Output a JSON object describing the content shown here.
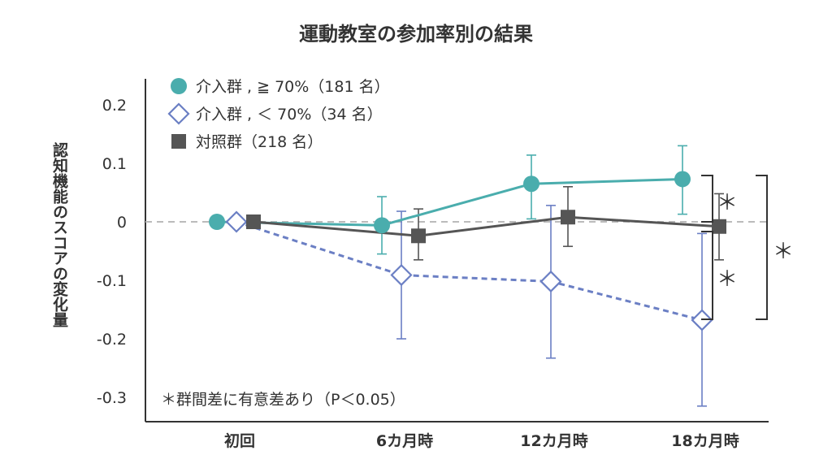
{
  "chart_data": {
    "type": "line",
    "title": "運動教室の参加率別の結果",
    "ylabel": "認知機能のスコアの変化量",
    "xlabel": "",
    "categories": [
      "初回",
      "6カ月時",
      "12カ月時",
      "18カ月時"
    ],
    "y_ticks": [
      "0.2",
      "0.1",
      "0",
      "-0.1",
      "-0.2",
      "-0.3"
    ],
    "ylim": [
      -0.33,
      0.24
    ],
    "reference_line": 0,
    "grid": false,
    "legend_position": "top-left",
    "series": [
      {
        "name": "介入群 , ≧ 70%（181 名）",
        "color": "#4aadad",
        "marker": "circle",
        "line_style": "solid",
        "values": [
          0,
          -0.006,
          0.065,
          0.073
        ],
        "error_low": [
          null,
          -0.055,
          0.005,
          0.013
        ],
        "error_high": [
          null,
          0.043,
          0.114,
          0.13
        ]
      },
      {
        "name": "介入群 , ＜ 70%（34 名）",
        "color": "#6b7fc4",
        "marker": "diamond-open",
        "line_style": "dashed",
        "values": [
          0,
          -0.091,
          -0.102,
          -0.168
        ],
        "error_low": [
          null,
          -0.2,
          -0.233,
          -0.315
        ],
        "error_high": [
          null,
          0.018,
          0.028,
          -0.02
        ]
      },
      {
        "name": "対照群（218 名）",
        "color": "#555555",
        "marker": "square",
        "line_style": "solid",
        "values": [
          0,
          -0.024,
          0.008,
          -0.008
        ],
        "error_low": [
          null,
          -0.065,
          -0.042,
          -0.065
        ],
        "error_high": [
          null,
          0.022,
          0.06,
          0.048
        ]
      }
    ],
    "annotations": {
      "note": "＊群間差に有意差あり（P＜0.05）",
      "markers": [
        "＊",
        "＊",
        "＊"
      ]
    }
  }
}
